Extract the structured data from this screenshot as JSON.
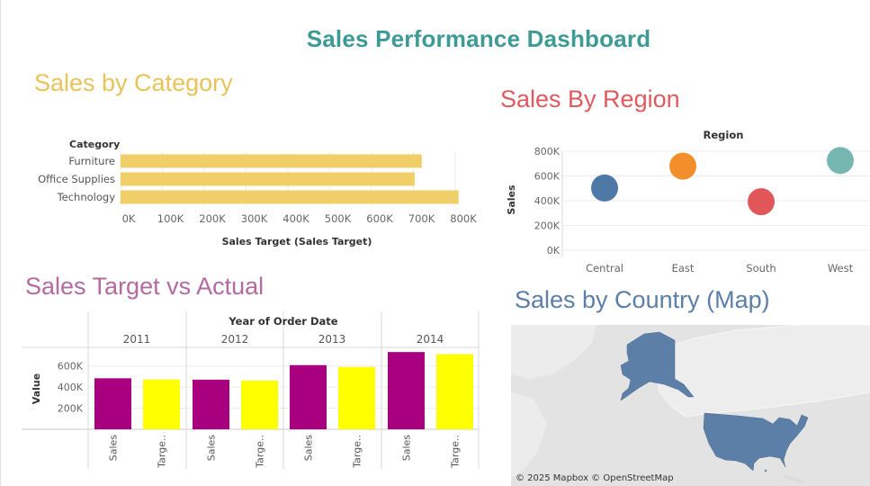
{
  "dashboard": {
    "title": "Sales Performance Dashboard",
    "section_titles": {
      "category": "Sales by Category",
      "region": "Sales By Region",
      "target_vs_actual": "Sales Target vs Actual",
      "map": "Sales by Country (Map)"
    },
    "map_attribution": "© 2025 Mapbox © OpenStreetMap"
  },
  "colors": {
    "title": "#3d9a94",
    "category_bar": "#f0cf68",
    "region_central": "#4e79a7",
    "region_east": "#f28e2b",
    "region_south": "#e15759",
    "region_west": "#76b7b2",
    "sales_bar": "#a8007f",
    "target_bar": "#ffff00",
    "map_land": "#5b7fa6",
    "map_bg": "#e3e3e3"
  },
  "chart_data": [
    {
      "id": "category",
      "type": "bar",
      "orientation": "horizontal",
      "row_header": "Category",
      "categories": [
        "Furniture",
        "Office Supplies",
        "Technology"
      ],
      "values": [
        720000,
        703000,
        808000
      ],
      "xlabel": "Sales Target (Sales Target)",
      "xlim": [
        0,
        840000
      ],
      "ticks": [
        "0K",
        "100K",
        "200K",
        "300K",
        "400K",
        "500K",
        "600K",
        "700K",
        "800K"
      ],
      "grid": true
    },
    {
      "id": "region",
      "type": "scatter",
      "header": "Region",
      "categories": [
        "Central",
        "East",
        "South",
        "West"
      ],
      "values": [
        503000,
        679000,
        392000,
        725000
      ],
      "ylabel": "Sales",
      "ylim": [
        0,
        800000
      ],
      "ticks": [
        "0K",
        "200K",
        "400K",
        "600K",
        "800K"
      ],
      "grid": true
    },
    {
      "id": "target_vs_actual",
      "type": "bar",
      "header": "Year of Order Date",
      "years": [
        "2011",
        "2012",
        "2013",
        "2014"
      ],
      "measure_labels": [
        "Sales",
        "Targe.."
      ],
      "series": [
        {
          "name": "Sales",
          "values": [
            484000,
            471000,
            609000,
            733000
          ]
        },
        {
          "name": "Sales Target",
          "values": [
            473000,
            462000,
            591000,
            713000
          ]
        }
      ],
      "ylabel": "Value",
      "ylim": [
        0,
        760000
      ],
      "ticks": [
        "200K",
        "400K",
        "600K"
      ],
      "grid": true
    }
  ]
}
